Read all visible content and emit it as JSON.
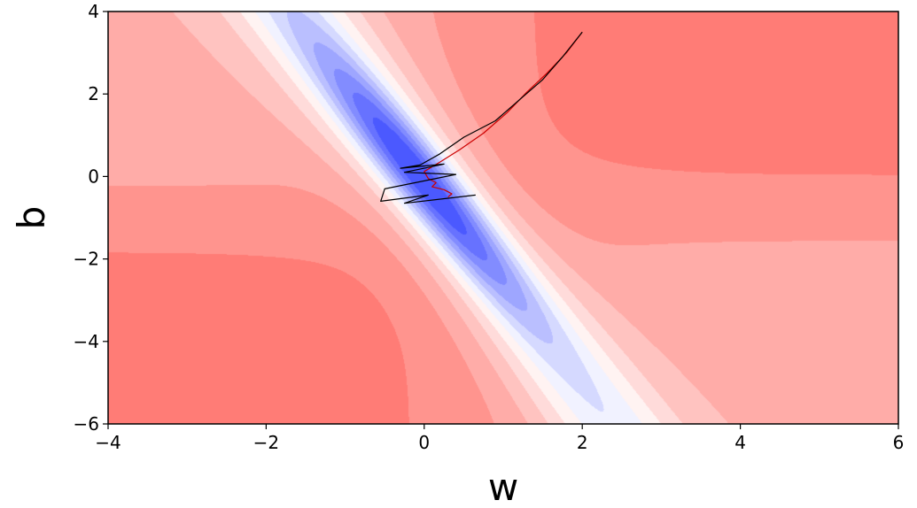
{
  "chart_data": {
    "type": "contour",
    "title": "",
    "xlabel": "w",
    "ylabel": "b",
    "xlim": [
      -4,
      6
    ],
    "ylim": [
      -6,
      4
    ],
    "xticks": [
      -4,
      -2,
      0,
      2,
      4,
      6
    ],
    "yticks": [
      -6,
      -4,
      -2,
      0,
      2,
      4
    ],
    "xtick_labels": [
      "−4",
      "−2",
      "0",
      "2",
      "4",
      "6"
    ],
    "ytick_labels": [
      "−6",
      "−4",
      "−2",
      "0",
      "2",
      "4"
    ],
    "colormap": "bwr",
    "colors": {
      "low": "#3d4cff",
      "mid": "#ffffff",
      "high": "#ff4d4d"
    },
    "trajectories": [
      {
        "color": "#cc0000",
        "points": [
          [
            2.0,
            3.5
          ],
          [
            1.8,
            3.0
          ],
          [
            1.55,
            2.5
          ],
          [
            1.3,
            2.05
          ],
          [
            1.05,
            1.55
          ],
          [
            0.75,
            1.05
          ],
          [
            0.45,
            0.65
          ],
          [
            0.2,
            0.35
          ],
          [
            0.0,
            0.12
          ],
          [
            0.05,
            -0.05
          ],
          [
            0.15,
            -0.15
          ],
          [
            0.1,
            -0.25
          ],
          [
            0.25,
            -0.32
          ],
          [
            0.35,
            -0.42
          ],
          [
            0.3,
            -0.5
          ]
        ]
      },
      {
        "color": "#000000",
        "points": [
          [
            2.0,
            3.5
          ],
          [
            1.75,
            2.9
          ],
          [
            1.5,
            2.35
          ],
          [
            1.2,
            1.85
          ],
          [
            0.9,
            1.35
          ],
          [
            0.5,
            0.95
          ],
          [
            0.2,
            0.55
          ],
          [
            -0.05,
            0.28
          ],
          [
            -0.3,
            0.2
          ],
          [
            0.25,
            0.3
          ],
          [
            -0.25,
            0.1
          ],
          [
            0.4,
            0.05
          ],
          [
            -0.5,
            -0.3
          ],
          [
            -0.55,
            -0.6
          ],
          [
            0.05,
            -0.45
          ],
          [
            -0.25,
            -0.65
          ],
          [
            0.65,
            -0.45
          ]
        ]
      }
    ]
  }
}
